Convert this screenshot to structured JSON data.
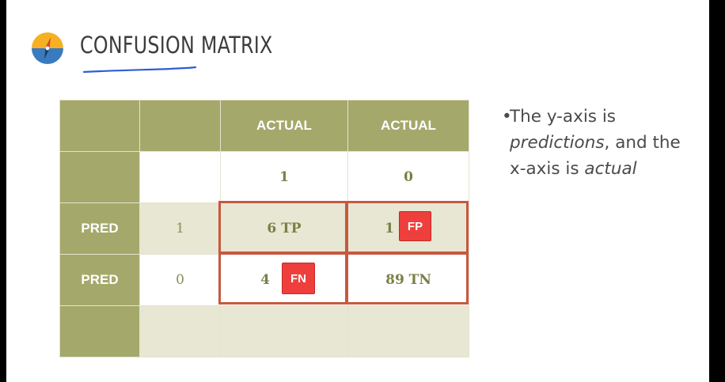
{
  "slide": {
    "title": "CONFUSION MATRIX",
    "logo_icon": "compass-icon",
    "accent_color": "#a4a86b",
    "highlight_color": "#c7583f",
    "tag_color": "#ee3f3c"
  },
  "matrix": {
    "header_row": [
      "",
      "",
      "ACTUAL",
      "ACTUAL"
    ],
    "class_row": [
      "",
      "",
      "1",
      "0"
    ],
    "rows": [
      {
        "label": "PRED",
        "class": "1",
        "cells": [
          "6 TP",
          "1"
        ]
      },
      {
        "label": "PRED",
        "class": "0",
        "cells": [
          "4",
          "89 TN"
        ]
      }
    ],
    "tags": {
      "fp": "FP",
      "fn": "FN"
    }
  },
  "bullet": {
    "pre": "The y-axis is ",
    "em1": "predictions",
    "mid": ", and the x-axis is ",
    "em2": "actual"
  }
}
